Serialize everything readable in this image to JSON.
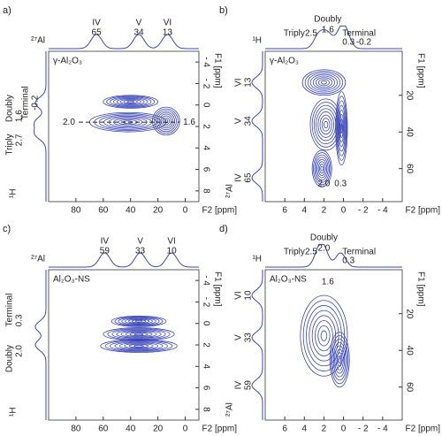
{
  "chart_data": [
    {
      "type": "contour",
      "panel": "a)",
      "sample": "γ-Al₂O₃",
      "x_nucleus": "²⁷Al",
      "y_nucleus": "¹H",
      "xlabel": "F2 [ppm]",
      "ylabel": "F1 [ppm]",
      "xlim": [
        100,
        -10
      ],
      "xticks": [
        80,
        60,
        40,
        20,
        0
      ],
      "ylim": [
        -5,
        9
      ],
      "yticks": [
        {
          "value": -4,
          "label": "- 4"
        },
        {
          "value": -2,
          "label": "- 2"
        },
        0,
        2,
        4,
        6,
        8
      ],
      "top_peaks": [
        {
          "label": "IV",
          "value": 65
        },
        {
          "label": "V",
          "value": 34
        },
        {
          "label": "VI",
          "value": 13
        }
      ],
      "side_peaks": [
        {
          "label": "Terminal",
          "value": -0.2
        },
        {
          "label": "Doubly",
          "value": 1.6
        },
        {
          "label": "Triply",
          "value": 2.7
        }
      ],
      "inner_labels": [
        {
          "value": 2,
          "label": "2.0"
        },
        1.6
      ],
      "peaks": [
        {
          "x": 42,
          "y": 1.6,
          "rx": 28,
          "ry": 0.9
        },
        {
          "x": 14,
          "y": 1.5,
          "rx": 10,
          "ry": 1.3
        },
        {
          "x": 40,
          "y": -0.3,
          "rx": 20,
          "ry": 0.6
        }
      ]
    },
    {
      "type": "contour",
      "panel": "b)",
      "sample": "γ-Al₂O₃",
      "x_nucleus": "¹H",
      "y_nucleus": "²⁷Al",
      "xlabel": "F2 [ppm]",
      "ylabel": "F1 [ppm]",
      "xlim": [
        8,
        -6
      ],
      "xticks": [
        6,
        4,
        2,
        0,
        {
          "value": -2,
          "label": "- 2"
        },
        {
          "value": -4,
          "label": "- 4"
        }
      ],
      "ylim": [
        -4,
        78
      ],
      "yticks": [
        20,
        40,
        60
      ],
      "top_peaks": [
        {
          "label": "Triply",
          "value": 2.5
        },
        {
          "label": "Doubly",
          "value": 1.6
        },
        {
          "label": "Terminal",
          "value": 0.3
        },
        {
          "label": null,
          "value": -0.2
        }
      ],
      "side_peaks": [
        {
          "label": "VI",
          "value": 13
        },
        {
          "label": "V",
          "value": 34
        },
        {
          "label": "IV",
          "value": 65
        }
      ],
      "inner_labels": [
        {
          "value": 2,
          "label": "2.0"
        },
        0.3
      ],
      "peaks": [
        {
          "x": 2.0,
          "y": 13,
          "rx": 2.2,
          "ry": 7
        },
        {
          "x": 1.8,
          "y": 36,
          "rx": 1.6,
          "ry": 14
        },
        {
          "x": 0.2,
          "y": 38,
          "rx": 0.6,
          "ry": 20
        },
        {
          "x": 2.2,
          "y": 60,
          "rx": 1.0,
          "ry": 10
        }
      ]
    },
    {
      "type": "contour",
      "panel": "c)",
      "sample": "Al₂O₃-NS",
      "x_nucleus": "²⁷Al",
      "y_nucleus": "¹H",
      "xlabel": "F2 [ppm]",
      "ylabel": "F1 [ppm]",
      "xlim": [
        100,
        -10
      ],
      "xticks": [
        80,
        60,
        40,
        20,
        0
      ],
      "ylim": [
        -5,
        9
      ],
      "yticks": [
        {
          "value": -4,
          "label": "- 4"
        },
        {
          "value": -2,
          "label": "- 2"
        },
        0,
        2,
        4,
        6,
        8
      ],
      "top_peaks": [
        {
          "label": "IV",
          "value": 59
        },
        {
          "label": "V",
          "value": 33
        },
        {
          "label": "VI",
          "value": 10
        }
      ],
      "side_peaks": [
        {
          "label": "Terminal",
          "value": 0.3
        },
        {
          "label": "Doubly",
          "value": {
            "value": 2,
            "label": "2.0"
          }
        }
      ],
      "inner_labels": [],
      "peaks": [
        {
          "x": 34,
          "y": -0.2,
          "rx": 20,
          "ry": 0.5
        },
        {
          "x": 34,
          "y": 1.0,
          "rx": 26,
          "ry": 0.6
        },
        {
          "x": 34,
          "y": 2.1,
          "rx": 28,
          "ry": 0.6
        }
      ]
    },
    {
      "type": "contour",
      "panel": "d)",
      "sample": "Al₂O₃-NS",
      "x_nucleus": "¹H",
      "y_nucleus": "²⁷Al",
      "xlabel": "F2 [ppm]",
      "ylabel": "F1 [ppm]",
      "xlim": [
        8,
        -6
      ],
      "xticks": [
        6,
        4,
        2,
        0,
        {
          "value": -2,
          "label": "- 2"
        },
        {
          "value": -4,
          "label": "- 4"
        }
      ],
      "ylim": [
        -4,
        78
      ],
      "yticks": [
        20,
        40,
        60
      ],
      "top_peaks": [
        {
          "label": "Triply",
          "value": 2.5
        },
        {
          "label": "Doubly",
          "value": {
            "value": 2,
            "label": "2.0"
          }
        },
        {
          "label": "Terminal",
          "value": 0.3
        }
      ],
      "side_peaks": [
        {
          "label": "VI",
          "value": 10
        },
        {
          "label": "V",
          "value": 33
        },
        {
          "label": "IV",
          "value": 59
        }
      ],
      "inner_labels": [
        1.6
      ],
      "peaks": [
        {
          "x": 2.0,
          "y": 32,
          "rx": 2.4,
          "ry": 22
        },
        {
          "x": 0.4,
          "y": 45,
          "rx": 1.0,
          "ry": 15
        }
      ]
    }
  ]
}
